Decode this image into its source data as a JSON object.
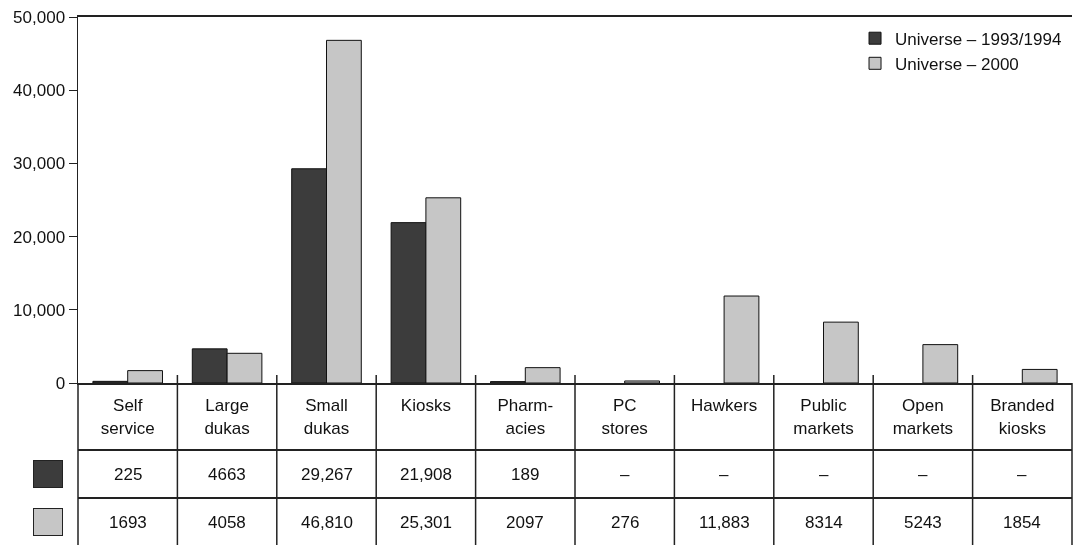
{
  "chart_data": {
    "type": "bar",
    "categories": [
      "Self\nservice",
      "Large\ndukas",
      "Small\ndukas",
      "Kiosks",
      "Pharm-\nacies",
      "PC\nstores",
      "Hawkers",
      "Public\nmarkets",
      "Open\nmarkets",
      "Branded\nkiosks"
    ],
    "series": [
      {
        "name": "Universe – 1993/1994",
        "color": "#3c3c3c",
        "values": [
          225,
          4663,
          29267,
          21908,
          189,
          null,
          null,
          null,
          null,
          null
        ],
        "value_labels": [
          "225",
          "4663",
          "29,267",
          "21,908",
          "189",
          "–",
          "–",
          "–",
          "–",
          "–"
        ]
      },
      {
        "name": "Universe – 2000",
        "color": "#c6c6c6",
        "values": [
          1693,
          4058,
          46810,
          25301,
          2097,
          276,
          11883,
          8314,
          5243,
          1854
        ],
        "value_labels": [
          "1693",
          "4058",
          "46,810",
          "25,301",
          "2097",
          "276",
          "11,883",
          "8314",
          "5243",
          "1854"
        ]
      }
    ],
    "ylim": [
      0,
      50000
    ],
    "yticks": [
      0,
      {
        "value": 10000,
        "label": "10,000"
      },
      {
        "value": 20000,
        "label": "20,000"
      },
      {
        "value": 30000,
        "label": "30,000"
      },
      {
        "value": 40000,
        "label": "40,000"
      },
      {
        "value": 50000,
        "label": "50,000"
      }
    ],
    "grid": false,
    "legend": "top right"
  }
}
